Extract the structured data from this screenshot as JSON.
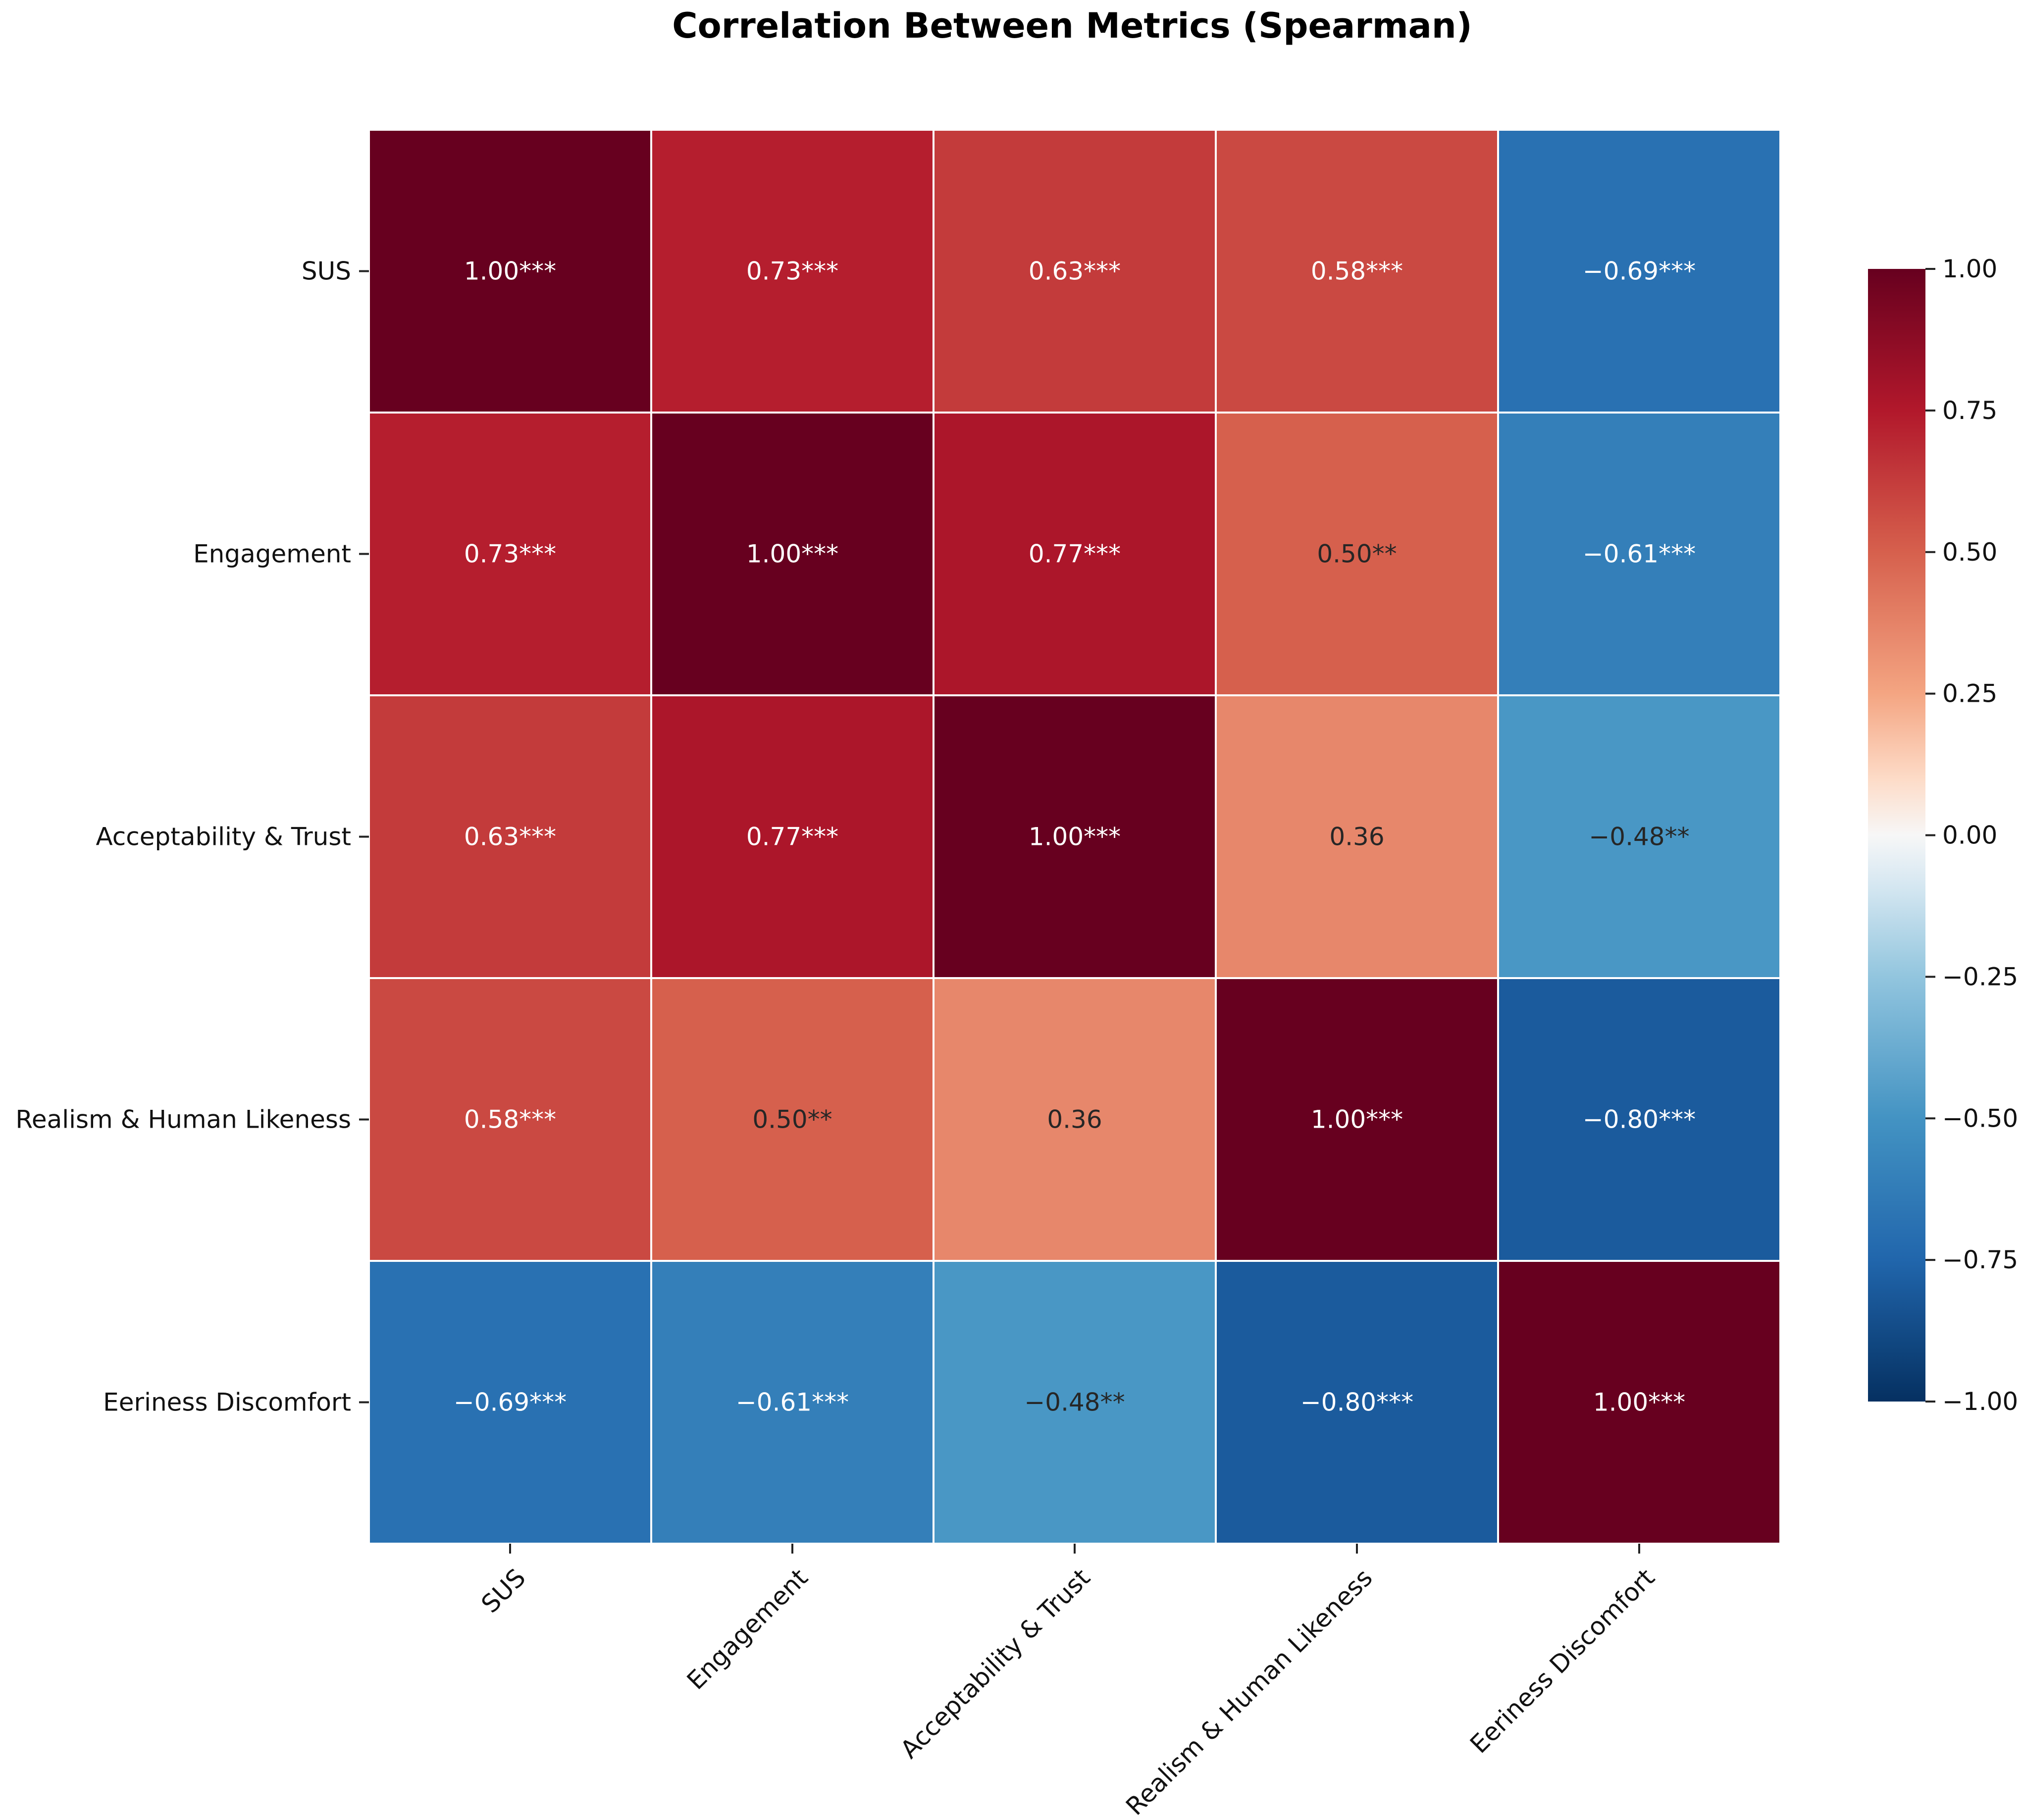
{
  "chart_data": {
    "type": "heatmap",
    "title": "Correlation Between Metrics (Spearman)",
    "xlabel": "",
    "ylabel": "",
    "row_labels": [
      "SUS",
      "Engagement",
      "Acceptability & Trust",
      "Realism & Human Likeness",
      "Eeriness Discomfort"
    ],
    "col_labels": [
      "SUS",
      "Engagement",
      "Acceptability & Trust",
      "Realism & Human Likeness",
      "Eeriness Discomfort"
    ],
    "values": [
      [
        1.0,
        0.73,
        0.63,
        0.58,
        -0.69
      ],
      [
        0.73,
        1.0,
        0.77,
        0.5,
        -0.61
      ],
      [
        0.63,
        0.77,
        1.0,
        0.36,
        -0.48
      ],
      [
        0.58,
        0.5,
        0.36,
        1.0,
        -0.8
      ],
      [
        -0.69,
        -0.61,
        -0.48,
        -0.8,
        1.0
      ]
    ],
    "annotations": [
      [
        "1.00***",
        "0.73***",
        "0.63***",
        "0.58***",
        "−0.69***"
      ],
      [
        "0.73***",
        "1.00***",
        "0.77***",
        "0.50**",
        "−0.61***"
      ],
      [
        "0.63***",
        "0.77***",
        "1.00***",
        "0.36",
        "−0.48**"
      ],
      [
        "0.58***",
        "0.50**",
        "0.36",
        "1.00***",
        "−0.80***"
      ],
      [
        "−0.69***",
        "−0.61***",
        "−0.48**",
        "−0.80***",
        "1.00***"
      ]
    ],
    "colormap": "RdBu_r",
    "vmin": -1.0,
    "vmax": 1.0,
    "colorbar": {
      "ticks": [
        1.0,
        0.75,
        0.5,
        0.25,
        0.0,
        -0.25,
        -0.5,
        -0.75,
        -1.0
      ],
      "tick_labels": [
        "1.00",
        "0.75",
        "0.50",
        "0.25",
        "0.00",
        "−0.25",
        "−0.50",
        "−0.75",
        "−1.00"
      ]
    },
    "grid": false,
    "legend": "colorbar-right"
  }
}
